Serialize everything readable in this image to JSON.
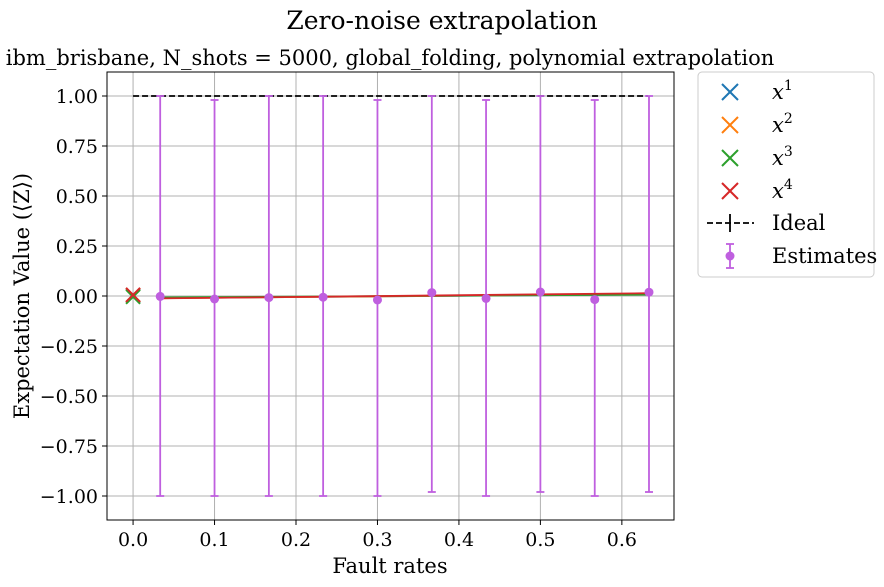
{
  "chart_data": {
    "type": "scatter",
    "title": "Zero-noise extrapolation",
    "subtitle": "ibm_brisbane, N_shots = 5000, global_folding, polynomial extrapolation",
    "xlabel": "Fault rates",
    "ylabel": "Expectation Value (⟨Z⟩)",
    "xlim": [
      -0.032,
      0.664
    ],
    "ylim": [
      -1.12,
      1.12
    ],
    "xticks": [
      0.0,
      0.1,
      0.2,
      0.3,
      0.4,
      0.5,
      0.6
    ],
    "xtick_labels": [
      "0.0",
      "0.1",
      "0.2",
      "0.3",
      "0.4",
      "0.5",
      "0.6"
    ],
    "yticks": [
      1.0,
      0.75,
      0.5,
      0.25,
      0.0,
      -0.25,
      -0.5,
      -0.75,
      -1.0
    ],
    "ytick_labels": [
      "1.00",
      "0.75",
      "0.50",
      "0.25",
      "0.00",
      "−0.25",
      "−0.50",
      "−0.75",
      "−1.00"
    ],
    "grid": true,
    "legend_position": "outside-right",
    "ideal": {
      "name": "Ideal",
      "y": 1.0,
      "x_range": [
        0.0,
        0.632
      ],
      "color": "#000000"
    },
    "estimates": {
      "name": "Estimates",
      "color": "#bf5fdf",
      "x": [
        0.0333,
        0.1,
        0.1667,
        0.2333,
        0.3,
        0.3667,
        0.4333,
        0.5,
        0.5667,
        0.6333
      ],
      "y": [
        -0.002,
        -0.015,
        -0.008,
        -0.006,
        -0.02,
        0.017,
        -0.012,
        0.02,
        -0.018,
        0.019
      ],
      "err_low": [
        -1.0,
        -1.0,
        -1.0,
        -1.0,
        -1.0,
        -0.98,
        -1.0,
        -0.98,
        -1.0,
        -0.98
      ],
      "err_high": [
        1.0,
        0.98,
        1.0,
        1.0,
        0.98,
        1.0,
        0.98,
        1.0,
        0.98,
        1.0
      ]
    },
    "fits": [
      {
        "name": "x^1",
        "exp": "1",
        "color": "#1f77b4",
        "zne": 0.002,
        "y_start": -0.01,
        "y_end": 0.008
      },
      {
        "name": "x^2",
        "exp": "2",
        "color": "#ff7f0e",
        "zne": 0.004,
        "y_start": -0.011,
        "y_end": 0.01
      },
      {
        "name": "x^3",
        "exp": "3",
        "color": "#2ca02c",
        "zne": -0.004,
        "y_start": -0.007,
        "y_end": 0.007
      },
      {
        "name": "x^4",
        "exp": "4",
        "color": "#d62728",
        "zne": 0.006,
        "y_start": -0.012,
        "y_end": 0.014
      }
    ]
  }
}
